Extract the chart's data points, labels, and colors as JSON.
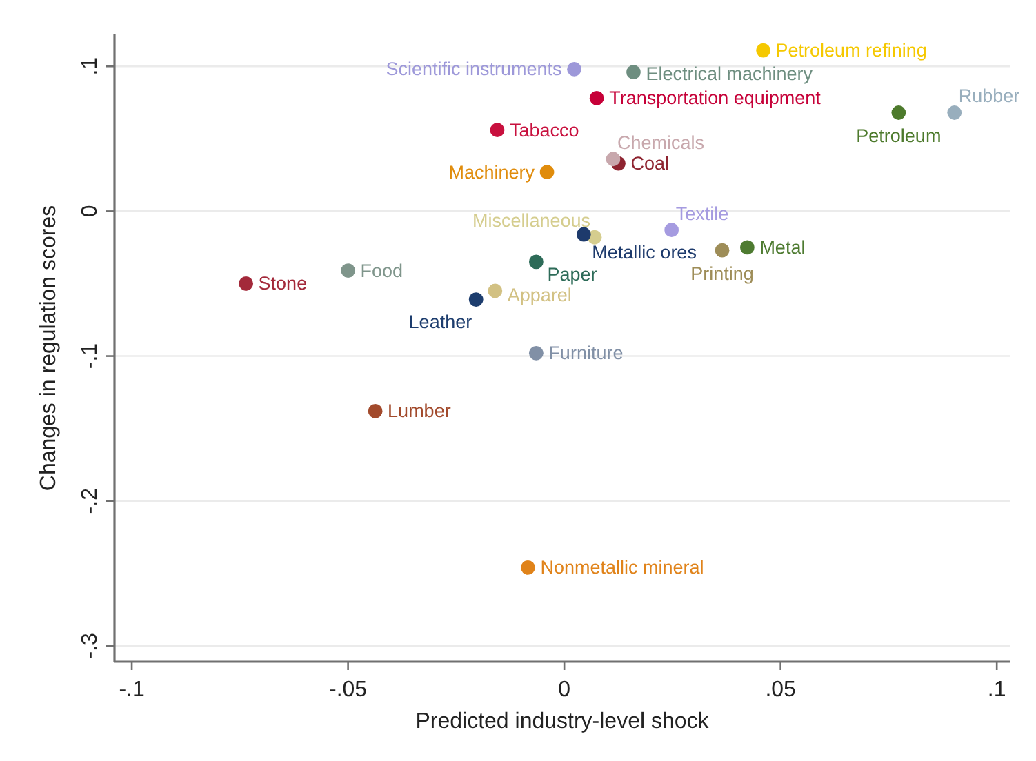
{
  "chart_data": {
    "type": "scatter",
    "xlabel": "Predicted industry-level shock",
    "ylabel": "Changes in regulation scores",
    "xlim": [
      -0.104,
      0.103
    ],
    "ylim": [
      -0.311,
      0.122
    ],
    "xticks": [
      {
        "value": -0.1,
        "label": "-.1"
      },
      {
        "value": -0.05,
        "label": "-.05"
      },
      0,
      {
        "value": 0.05,
        "label": ".05"
      },
      {
        "value": 0.1,
        "label": ".1"
      }
    ],
    "yticks": [
      {
        "value": -0.3,
        "label": "-.3"
      },
      {
        "value": -0.2,
        "label": "-.2"
      },
      {
        "value": -0.1,
        "label": "-.1"
      },
      0,
      {
        "value": 0.1,
        "label": ".1"
      }
    ],
    "grid": "y",
    "marker": "circle",
    "series": [
      {
        "name": "Scientific instruments",
        "color": "#9d98d9",
        "x": [
          0.0023
        ],
        "values": [
          0.098
        ]
      },
      {
        "name": "Electrical machinery",
        "color": "#6e8e80",
        "x": [
          0.016
        ],
        "values": [
          0.096
        ]
      },
      {
        "name": "Petroleum refining",
        "color": "#f5c800",
        "x": [
          0.046
        ],
        "values": [
          0.111
        ]
      },
      {
        "name": "Transportation equipment",
        "color": "#c60038",
        "x": [
          0.0075
        ],
        "values": [
          0.078
        ]
      },
      {
        "name": "Tabacco",
        "color": "#c8103e",
        "x": [
          -0.0155
        ],
        "values": [
          0.056
        ]
      },
      {
        "name": "Coal",
        "color": "#8e2430",
        "x": [
          0.0125
        ],
        "values": [
          0.033
        ]
      },
      {
        "name": "Chemicals",
        "color": "#c8a8ad",
        "x": [
          0.0113
        ],
        "values": [
          0.036
        ]
      },
      {
        "name": "Machinery",
        "color": "#e08c0c",
        "x": [
          -0.004
        ],
        "values": [
          0.027
        ]
      },
      {
        "name": "Petroleum",
        "color": "#4d7a2c",
        "x": [
          0.0773
        ],
        "values": [
          0.068
        ]
      },
      {
        "name": "Rubber",
        "color": "#98aebd",
        "x": [
          0.0902
        ],
        "values": [
          0.068
        ]
      },
      {
        "name": "Miscellaneous",
        "color": "#d5cd8e",
        "x": [
          0.007
        ],
        "values": [
          -0.018
        ]
      },
      {
        "name": "Metallic ores",
        "color": "#1d3a6c",
        "x": [
          0.0045
        ],
        "values": [
          -0.016
        ]
      },
      {
        "name": "Textile",
        "color": "#a59be0",
        "x": [
          0.0248
        ],
        "values": [
          -0.013
        ]
      },
      {
        "name": "Printing",
        "color": "#9e8d58",
        "x": [
          0.0365
        ],
        "values": [
          -0.027
        ]
      },
      {
        "name": "Metal",
        "color": "#4e7b31",
        "x": [
          0.0423
        ],
        "values": [
          -0.025
        ]
      },
      {
        "name": "Paper",
        "color": "#2d6b58",
        "x": [
          -0.0065
        ],
        "values": [
          -0.035
        ]
      },
      {
        "name": "Food",
        "color": "#7f958b",
        "x": [
          -0.05
        ],
        "values": [
          -0.041
        ]
      },
      {
        "name": "Stone",
        "color": "#a3293a",
        "x": [
          -0.0736
        ],
        "values": [
          -0.05
        ]
      },
      {
        "name": "Apparel",
        "color": "#d2c183",
        "x": [
          -0.016
        ],
        "values": [
          -0.055
        ]
      },
      {
        "name": "Leather",
        "color": "#1d3d6e",
        "x": [
          -0.0204
        ],
        "values": [
          -0.061
        ]
      },
      {
        "name": "Furniture",
        "color": "#8190a6",
        "x": [
          -0.0065
        ],
        "values": [
          -0.098
        ]
      },
      {
        "name": "Lumber",
        "color": "#a24a2c",
        "x": [
          -0.0437
        ],
        "values": [
          -0.138
        ]
      },
      {
        "name": "Nonmetallic mineral",
        "color": "#e0831a",
        "x": [
          -0.0084
        ],
        "values": [
          -0.246
        ]
      }
    ]
  }
}
